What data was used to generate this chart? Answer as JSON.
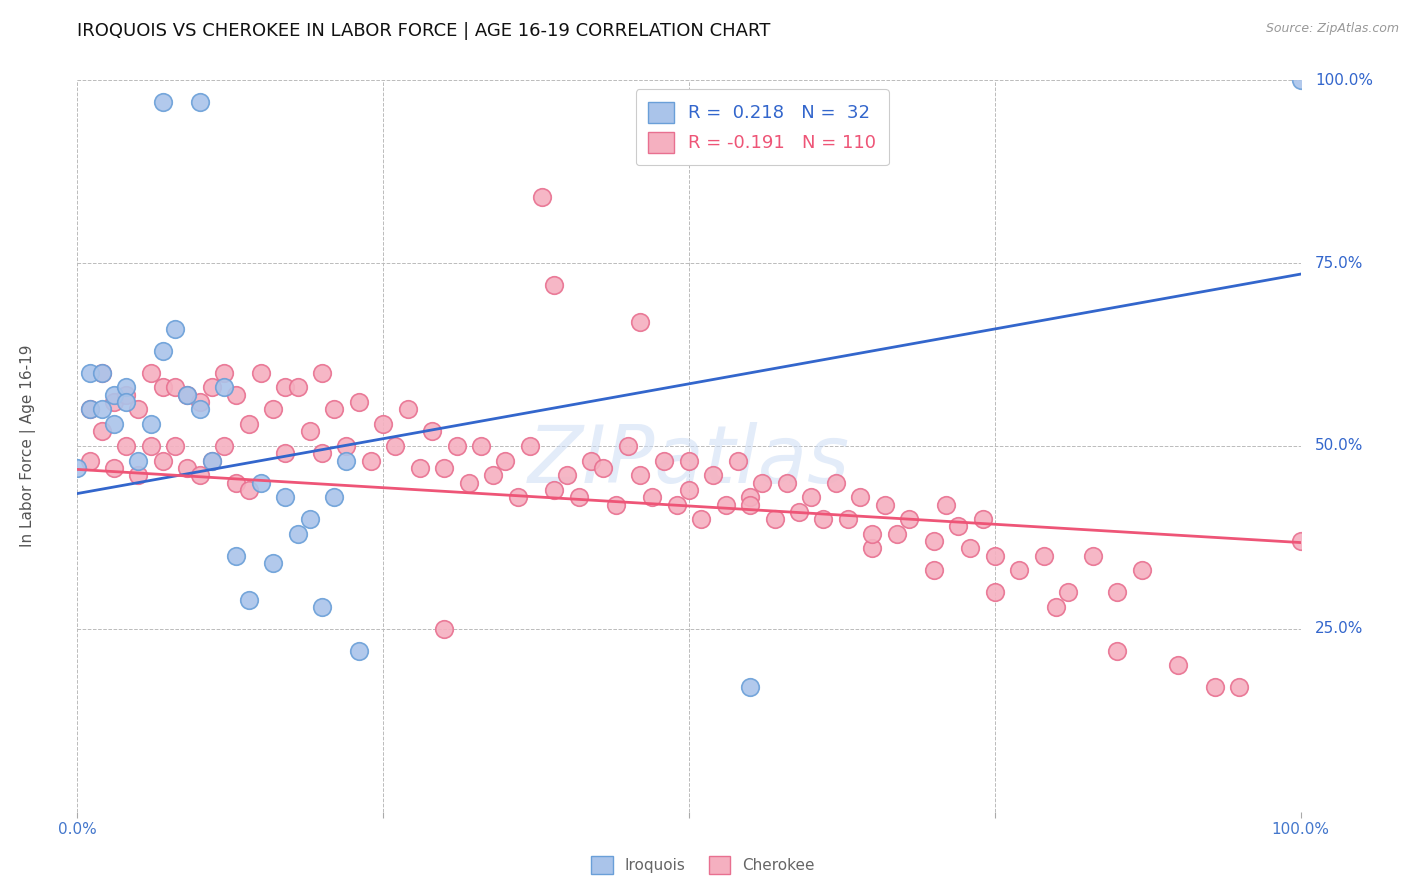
{
  "title": "IROQUOIS VS CHEROKEE IN LABOR FORCE | AGE 16-19 CORRELATION CHART",
  "source_text": "Source: ZipAtlas.com",
  "ylabel": "In Labor Force | Age 16-19",
  "xlim": [
    0,
    1.0
  ],
  "ylim": [
    0,
    1.0
  ],
  "watermark_text": "ZIPatlas",
  "iroquois_color": "#aac4ea",
  "iroquois_edge_color": "#6a9fd8",
  "cherokee_color": "#f5b0c0",
  "cherokee_edge_color": "#e87090",
  "blue_line_color": "#3366cc",
  "pink_line_color": "#ee5577",
  "R_iroquois": 0.218,
  "N_iroquois": 32,
  "R_cherokee": -0.191,
  "N_cherokee": 110,
  "blue_line_x0": 0.0,
  "blue_line_y0": 0.435,
  "blue_line_x1": 1.0,
  "blue_line_y1": 0.735,
  "pink_line_x0": 0.0,
  "pink_line_y0": 0.468,
  "pink_line_x1": 1.0,
  "pink_line_y1": 0.368,
  "background_color": "#ffffff",
  "grid_color": "#bbbbbb",
  "title_color": "#111111",
  "title_fontsize": 13,
  "axis_label_color": "#4477cc",
  "ytick_right_color": "#3366cc",
  "tick_fontsize": 11,
  "ylabel_fontsize": 11,
  "iroquois_x": [
    0.07,
    0.1,
    0.0,
    0.01,
    0.01,
    0.02,
    0.02,
    0.03,
    0.03,
    0.04,
    0.04,
    0.05,
    0.06,
    0.07,
    0.08,
    0.09,
    0.1,
    0.11,
    0.12,
    0.13,
    0.14,
    0.15,
    0.16,
    0.17,
    0.18,
    0.19,
    0.2,
    0.21,
    0.22,
    0.23,
    0.55,
    1.0
  ],
  "iroquois_y": [
    0.97,
    0.97,
    0.47,
    0.6,
    0.55,
    0.6,
    0.55,
    0.57,
    0.53,
    0.58,
    0.56,
    0.48,
    0.53,
    0.63,
    0.66,
    0.57,
    0.55,
    0.48,
    0.58,
    0.35,
    0.29,
    0.45,
    0.34,
    0.43,
    0.38,
    0.4,
    0.28,
    0.43,
    0.48,
    0.22,
    0.17,
    1.0
  ],
  "cherokee_x": [
    0.01,
    0.01,
    0.02,
    0.02,
    0.03,
    0.03,
    0.04,
    0.04,
    0.05,
    0.05,
    0.06,
    0.06,
    0.07,
    0.07,
    0.08,
    0.08,
    0.09,
    0.09,
    0.1,
    0.1,
    0.11,
    0.11,
    0.12,
    0.12,
    0.13,
    0.13,
    0.14,
    0.14,
    0.15,
    0.16,
    0.17,
    0.17,
    0.18,
    0.19,
    0.2,
    0.2,
    0.21,
    0.22,
    0.23,
    0.24,
    0.25,
    0.26,
    0.27,
    0.28,
    0.29,
    0.3,
    0.31,
    0.32,
    0.33,
    0.34,
    0.35,
    0.36,
    0.37,
    0.38,
    0.39,
    0.4,
    0.41,
    0.42,
    0.43,
    0.44,
    0.45,
    0.46,
    0.47,
    0.48,
    0.49,
    0.5,
    0.51,
    0.52,
    0.53,
    0.54,
    0.55,
    0.56,
    0.57,
    0.58,
    0.59,
    0.6,
    0.61,
    0.62,
    0.63,
    0.64,
    0.65,
    0.66,
    0.67,
    0.68,
    0.7,
    0.71,
    0.72,
    0.73,
    0.74,
    0.75,
    0.77,
    0.79,
    0.81,
    0.83,
    0.85,
    0.87,
    0.39,
    0.46,
    0.3,
    0.5,
    0.55,
    0.65,
    0.7,
    0.75,
    0.8,
    0.85,
    0.9,
    0.93,
    0.95,
    1.0
  ],
  "cherokee_y": [
    0.55,
    0.48,
    0.6,
    0.52,
    0.56,
    0.47,
    0.57,
    0.5,
    0.55,
    0.46,
    0.6,
    0.5,
    0.58,
    0.48,
    0.58,
    0.5,
    0.57,
    0.47,
    0.56,
    0.46,
    0.58,
    0.48,
    0.6,
    0.5,
    0.57,
    0.45,
    0.53,
    0.44,
    0.6,
    0.55,
    0.58,
    0.49,
    0.58,
    0.52,
    0.6,
    0.49,
    0.55,
    0.5,
    0.56,
    0.48,
    0.53,
    0.5,
    0.55,
    0.47,
    0.52,
    0.47,
    0.5,
    0.45,
    0.5,
    0.46,
    0.48,
    0.43,
    0.5,
    0.84,
    0.44,
    0.46,
    0.43,
    0.48,
    0.47,
    0.42,
    0.5,
    0.46,
    0.43,
    0.48,
    0.42,
    0.44,
    0.4,
    0.46,
    0.42,
    0.48,
    0.43,
    0.45,
    0.4,
    0.45,
    0.41,
    0.43,
    0.4,
    0.45,
    0.4,
    0.43,
    0.36,
    0.42,
    0.38,
    0.4,
    0.37,
    0.42,
    0.39,
    0.36,
    0.4,
    0.35,
    0.33,
    0.35,
    0.3,
    0.35,
    0.3,
    0.33,
    0.72,
    0.67,
    0.25,
    0.48,
    0.42,
    0.38,
    0.33,
    0.3,
    0.28,
    0.22,
    0.2,
    0.17,
    0.17,
    0.37
  ]
}
